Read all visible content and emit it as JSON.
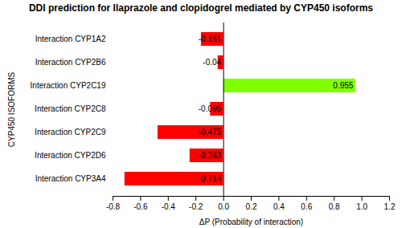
{
  "chart_data": {
    "type": "bar",
    "orientation": "horizontal",
    "title": "DDI prediction for Ilaprazole and clopidogrel mediated by CYP450 isoforms",
    "xlabel": "ΔP (Probability of interaction)",
    "ylabel": "CYP450 ISOFORMS",
    "categories": [
      "Interaction CYP1A2",
      "Interaction CYP2B6",
      "Interaction CYP2C19",
      "Interaction CYP2C8",
      "Interaction CYP2C9",
      "Interaction CYP2D6",
      "Interaction CYP3A4"
    ],
    "values": [
      -0.161,
      -0.04,
      0.955,
      -0.095,
      -0.475,
      -0.243,
      -0.714
    ],
    "value_labels": [
      "-0.161",
      "-0.04",
      "0.955",
      "-0.095",
      "-0.475",
      "-0.243",
      "-0.714"
    ],
    "colors": [
      "#ff0000",
      "#ff0000",
      "#7fff00",
      "#ff0000",
      "#ff0000",
      "#ff0000",
      "#ff0000"
    ],
    "data_labels": true,
    "xlim": [
      -0.8,
      1.2
    ],
    "xticks": [
      -0.8,
      -0.6,
      -0.4,
      -0.2,
      {
        "value": 0,
        "label": "0.0"
      },
      0.2,
      0.4,
      0.6,
      0.8,
      {
        "value": 1,
        "label": "1.0"
      },
      1.2
    ],
    "grid": false
  }
}
